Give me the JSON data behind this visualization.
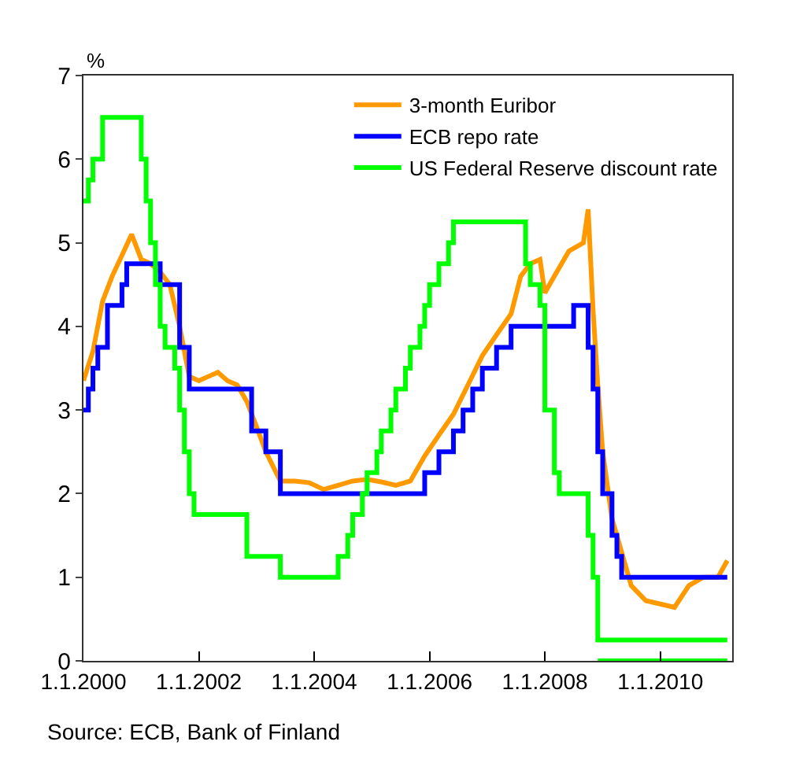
{
  "chart_data": {
    "type": "line",
    "ylabel": "%",
    "legend": "top right",
    "grid": false,
    "marker": "none",
    "line_style": "solid",
    "xlim": [
      "2000-01-01",
      "2011-04-01"
    ],
    "xticks": [
      {
        "value": "2000-01-01",
        "label": "1.1.2000"
      },
      {
        "value": "2002-01-01",
        "label": "1.1.2002"
      },
      {
        "value": "2004-01-01",
        "label": "1.1.2004"
      },
      {
        "value": "2006-01-01",
        "label": "1.1.2006"
      },
      {
        "value": "2008-01-01",
        "label": "1.1.2008"
      },
      {
        "value": "2010-01-01",
        "label": "1.1.2010"
      }
    ],
    "ylim": [
      0,
      7
    ],
    "yticks": [
      0,
      1,
      2,
      3,
      4,
      5,
      6,
      7
    ],
    "annotations": [
      "Source: ECB, Bank of Finland"
    ],
    "series": [
      {
        "name": "3-month Euribor",
        "color": "#ff9900",
        "x": [
          "2000-01",
          "2000-03",
          "2000-05",
          "2000-07",
          "2000-09",
          "2000-11",
          "2001-01",
          "2001-03",
          "2001-05",
          "2001-07",
          "2001-09",
          "2001-11",
          "2002-01",
          "2002-03",
          "2002-05",
          "2002-07",
          "2002-09",
          "2002-11",
          "2003-01",
          "2003-03",
          "2003-06",
          "2003-09",
          "2003-12",
          "2004-03",
          "2004-06",
          "2004-09",
          "2004-12",
          "2005-03",
          "2005-06",
          "2005-09",
          "2005-12",
          "2006-03",
          "2006-06",
          "2006-09",
          "2006-12",
          "2007-03",
          "2007-06",
          "2007-08",
          "2007-10",
          "2007-12",
          "2008-01",
          "2008-03",
          "2008-06",
          "2008-09",
          "2008-10",
          "2008-11",
          "2008-12",
          "2009-01",
          "2009-03",
          "2009-05",
          "2009-07",
          "2009-10",
          "2010-01",
          "2010-04",
          "2010-07",
          "2010-10",
          "2011-01",
          "2011-03"
        ],
        "values": [
          3.35,
          3.7,
          4.3,
          4.6,
          4.85,
          5.1,
          4.8,
          4.75,
          4.65,
          4.5,
          4.0,
          3.4,
          3.35,
          3.4,
          3.45,
          3.35,
          3.3,
          3.1,
          2.8,
          2.5,
          2.15,
          2.15,
          2.13,
          2.05,
          2.1,
          2.15,
          2.17,
          2.14,
          2.1,
          2.15,
          2.45,
          2.7,
          2.95,
          3.3,
          3.65,
          3.9,
          4.15,
          4.6,
          4.75,
          4.8,
          4.4,
          4.6,
          4.9,
          5.0,
          5.4,
          4.2,
          3.3,
          2.5,
          1.7,
          1.3,
          0.9,
          0.72,
          0.68,
          0.64,
          0.9,
          1.0,
          1.0,
          1.2
        ]
      },
      {
        "name": "ECB repo rate",
        "color": "#0000ff",
        "type": "step",
        "x": [
          "2000-01",
          "2000-02",
          "2000-03",
          "2000-04",
          "2000-06",
          "2000-09",
          "2000-10",
          "2001-05",
          "2001-09",
          "2001-11",
          "2002-12",
          "2003-03",
          "2003-06",
          "2005-12",
          "2006-03",
          "2006-06",
          "2006-08",
          "2006-10",
          "2006-12",
          "2007-03",
          "2007-06",
          "2008-07",
          "2008-10",
          "2008-11",
          "2008-12",
          "2009-01",
          "2009-03",
          "2009-04",
          "2009-05",
          "2011-03"
        ],
        "values": [
          3.0,
          3.25,
          3.5,
          3.75,
          4.25,
          4.5,
          4.75,
          4.5,
          3.75,
          3.25,
          2.75,
          2.5,
          2.0,
          2.25,
          2.5,
          2.75,
          3.0,
          3.25,
          3.5,
          3.75,
          4.0,
          4.25,
          3.75,
          3.25,
          2.5,
          2.0,
          1.5,
          1.25,
          1.0,
          1.0
        ]
      },
      {
        "name": "US Federal Reserve discount rate",
        "color": "#00ff00",
        "type": "step",
        "x": [
          "2000-01",
          "2000-02",
          "2000-03",
          "2000-05",
          "2001-01",
          "2001-02",
          "2001-03",
          "2001-04",
          "2001-05",
          "2001-06",
          "2001-08",
          "2001-09",
          "2001-10",
          "2001-11",
          "2001-12",
          "2002-11",
          "2003-06",
          "2004-06",
          "2004-08",
          "2004-09",
          "2004-11",
          "2004-12",
          "2005-02",
          "2005-03",
          "2005-05",
          "2005-06",
          "2005-08",
          "2005-09",
          "2005-11",
          "2005-12",
          "2006-01",
          "2006-03",
          "2006-05",
          "2006-06",
          "2007-09",
          "2007-10",
          "2007-12",
          "2008-01",
          "2008-03",
          "2008-04",
          "2008-10",
          "2008-11",
          "2008-12",
          "2011-03"
        ],
        "values": [
          5.5,
          5.75,
          6.0,
          6.5,
          6.0,
          5.5,
          5.0,
          4.5,
          4.0,
          3.75,
          3.5,
          3.0,
          2.5,
          2.0,
          1.75,
          1.25,
          1.0,
          1.25,
          1.5,
          1.75,
          2.0,
          2.25,
          2.5,
          2.75,
          3.0,
          3.25,
          3.5,
          3.75,
          4.0,
          4.25,
          4.5,
          4.75,
          5.0,
          5.25,
          4.75,
          4.5,
          4.25,
          3.0,
          2.25,
          2.0,
          1.5,
          1.0,
          0.25,
          0.25
        ]
      },
      {
        "color": "#00ff00",
        "type": "step",
        "x": [
          "2008-12",
          "2011-03"
        ],
        "values": [
          0.0,
          0.0
        ]
      }
    ]
  }
}
